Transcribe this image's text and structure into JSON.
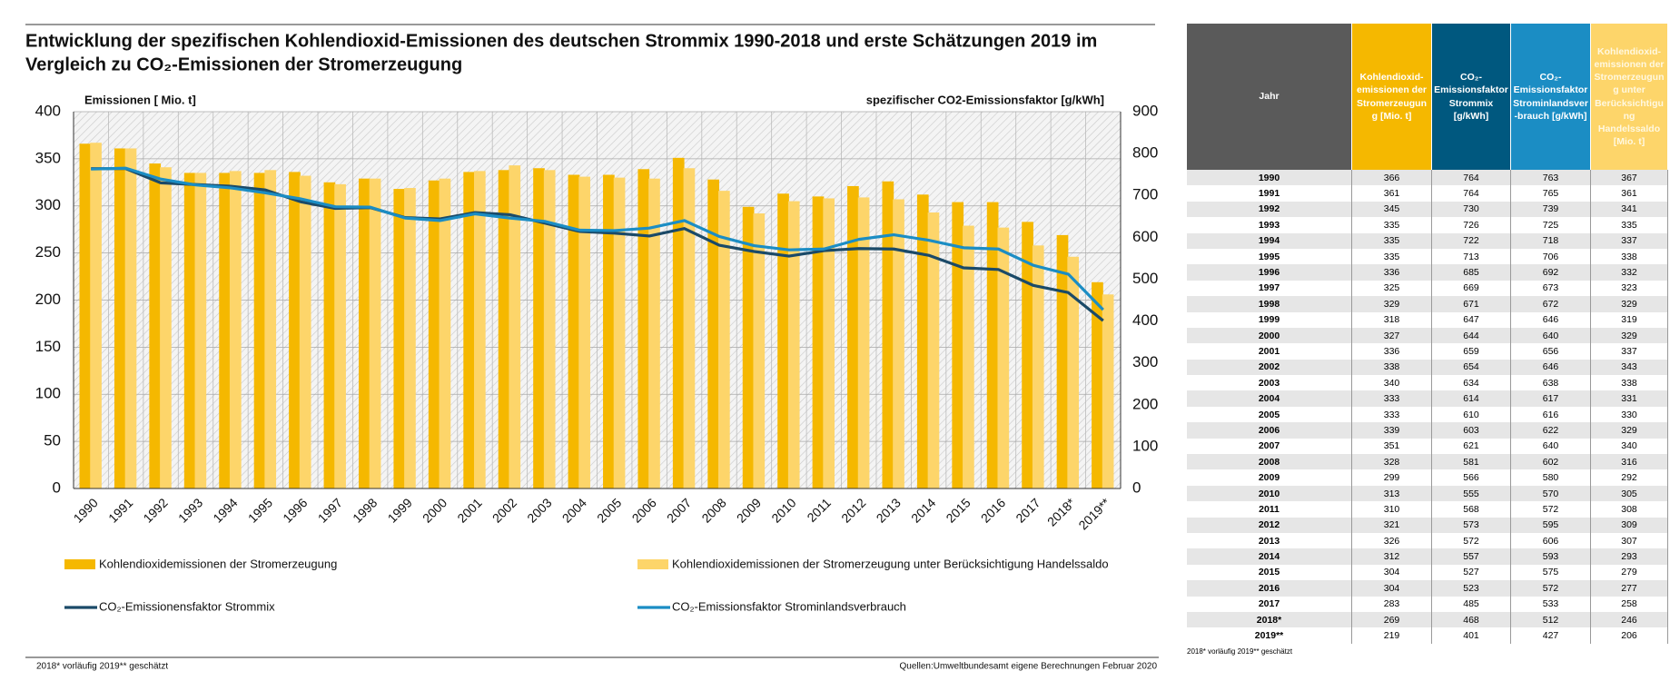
{
  "chart_data": {
    "type": "bar-line",
    "title": "Entwicklung der spezifischen Kohlendioxid-Emissionen des deutschen Strommix 1990-2018 und erste Schätzungen 2019 im",
    "subtitle": "Vergleich zu CO₂-Emissionen der Stromerzeugung",
    "y_label": "Emissionen [ Mio. t]",
    "y2_label": "spezifischer CO2-Emissionsfaktor [g/kWh]",
    "categories": [
      "1990",
      "1991",
      "1992",
      "1993",
      "1994",
      "1995",
      "1996",
      "1997",
      "1998",
      "1999",
      "2000",
      "2001",
      "2002",
      "2003",
      "2004",
      "2005",
      "2006",
      "2007",
      "2008",
      "2009",
      "2010",
      "2011",
      "2012",
      "2013",
      "2014",
      "2015",
      "2016",
      "2017",
      "2018*",
      "2019**"
    ],
    "series": [
      {
        "name": "Kohlendioxidemissionen der Stromerzeugung",
        "type": "bar",
        "color": "#f5b800",
        "values": [
          366,
          361,
          345,
          335,
          335,
          335,
          336,
          325,
          329,
          318,
          327,
          336,
          338,
          340,
          333,
          333,
          339,
          351,
          328,
          299,
          313,
          310,
          321,
          326,
          312,
          304,
          304,
          283,
          269,
          219
        ]
      },
      {
        "name": "Kohlendioxidemissionen der Stromerzeugung unter Berücksichtigung Handelssaldo",
        "type": "bar",
        "color": "#fdd56a",
        "values": [
          367,
          361,
          341,
          335,
          337,
          338,
          332,
          323,
          329,
          319,
          329,
          337,
          343,
          338,
          331,
          330,
          329,
          340,
          316,
          292,
          305,
          308,
          309,
          307,
          293,
          279,
          277,
          258,
          246,
          206
        ]
      },
      {
        "name": "CO₂-Emissionensfaktor Strommix",
        "type": "line",
        "axis": "y2",
        "color": "#1b4a68",
        "values": [
          764,
          764,
          730,
          726,
          722,
          713,
          685,
          669,
          671,
          647,
          644,
          659,
          654,
          634,
          614,
          610,
          603,
          621,
          581,
          566,
          555,
          568,
          573,
          572,
          557,
          527,
          523,
          485,
          468,
          401
        ]
      },
      {
        "name": "CO₂-Emissionsfaktor Strominlandsverbrauch",
        "type": "line",
        "axis": "y2",
        "color": "#1b8dc4",
        "values": [
          763,
          765,
          739,
          725,
          718,
          706,
          692,
          673,
          672,
          646,
          640,
          656,
          646,
          638,
          617,
          616,
          622,
          640,
          602,
          580,
          570,
          572,
          595,
          606,
          593,
          575,
          572,
          533,
          512,
          427
        ]
      }
    ],
    "ylim": [
      0,
      400
    ],
    "yticks": [
      0,
      50,
      100,
      150,
      200,
      250,
      300,
      350,
      400
    ],
    "y2lim": [
      0,
      900
    ],
    "y2ticks": [
      0,
      100,
      200,
      300,
      400,
      500,
      600,
      700,
      800,
      900
    ],
    "grid": true,
    "footnote": "2018* vorläufig    2019** geschätzt",
    "source": "Quellen:Umweltbundesamt  eigene Berechnungen Februar 2020"
  },
  "table": {
    "headers": [
      "Jahr",
      "Kohlendioxid-emissionen der Stromerzeugung [Mio. t]",
      "CO₂-Emissionsfaktor Strommix [g/kWh]",
      "CO₂-Emissionsfaktor Strominlandsver-brauch [g/kWh]",
      "Kohlendioxid-emissionen der Stromerzeugung unter Berücksichtigung Handelssaldo [Mio. t]"
    ],
    "header_colors": [
      "#5a5a5a",
      "#f5b800",
      "#00587f",
      "#1b8dc4",
      "#fdd56a"
    ]
  }
}
